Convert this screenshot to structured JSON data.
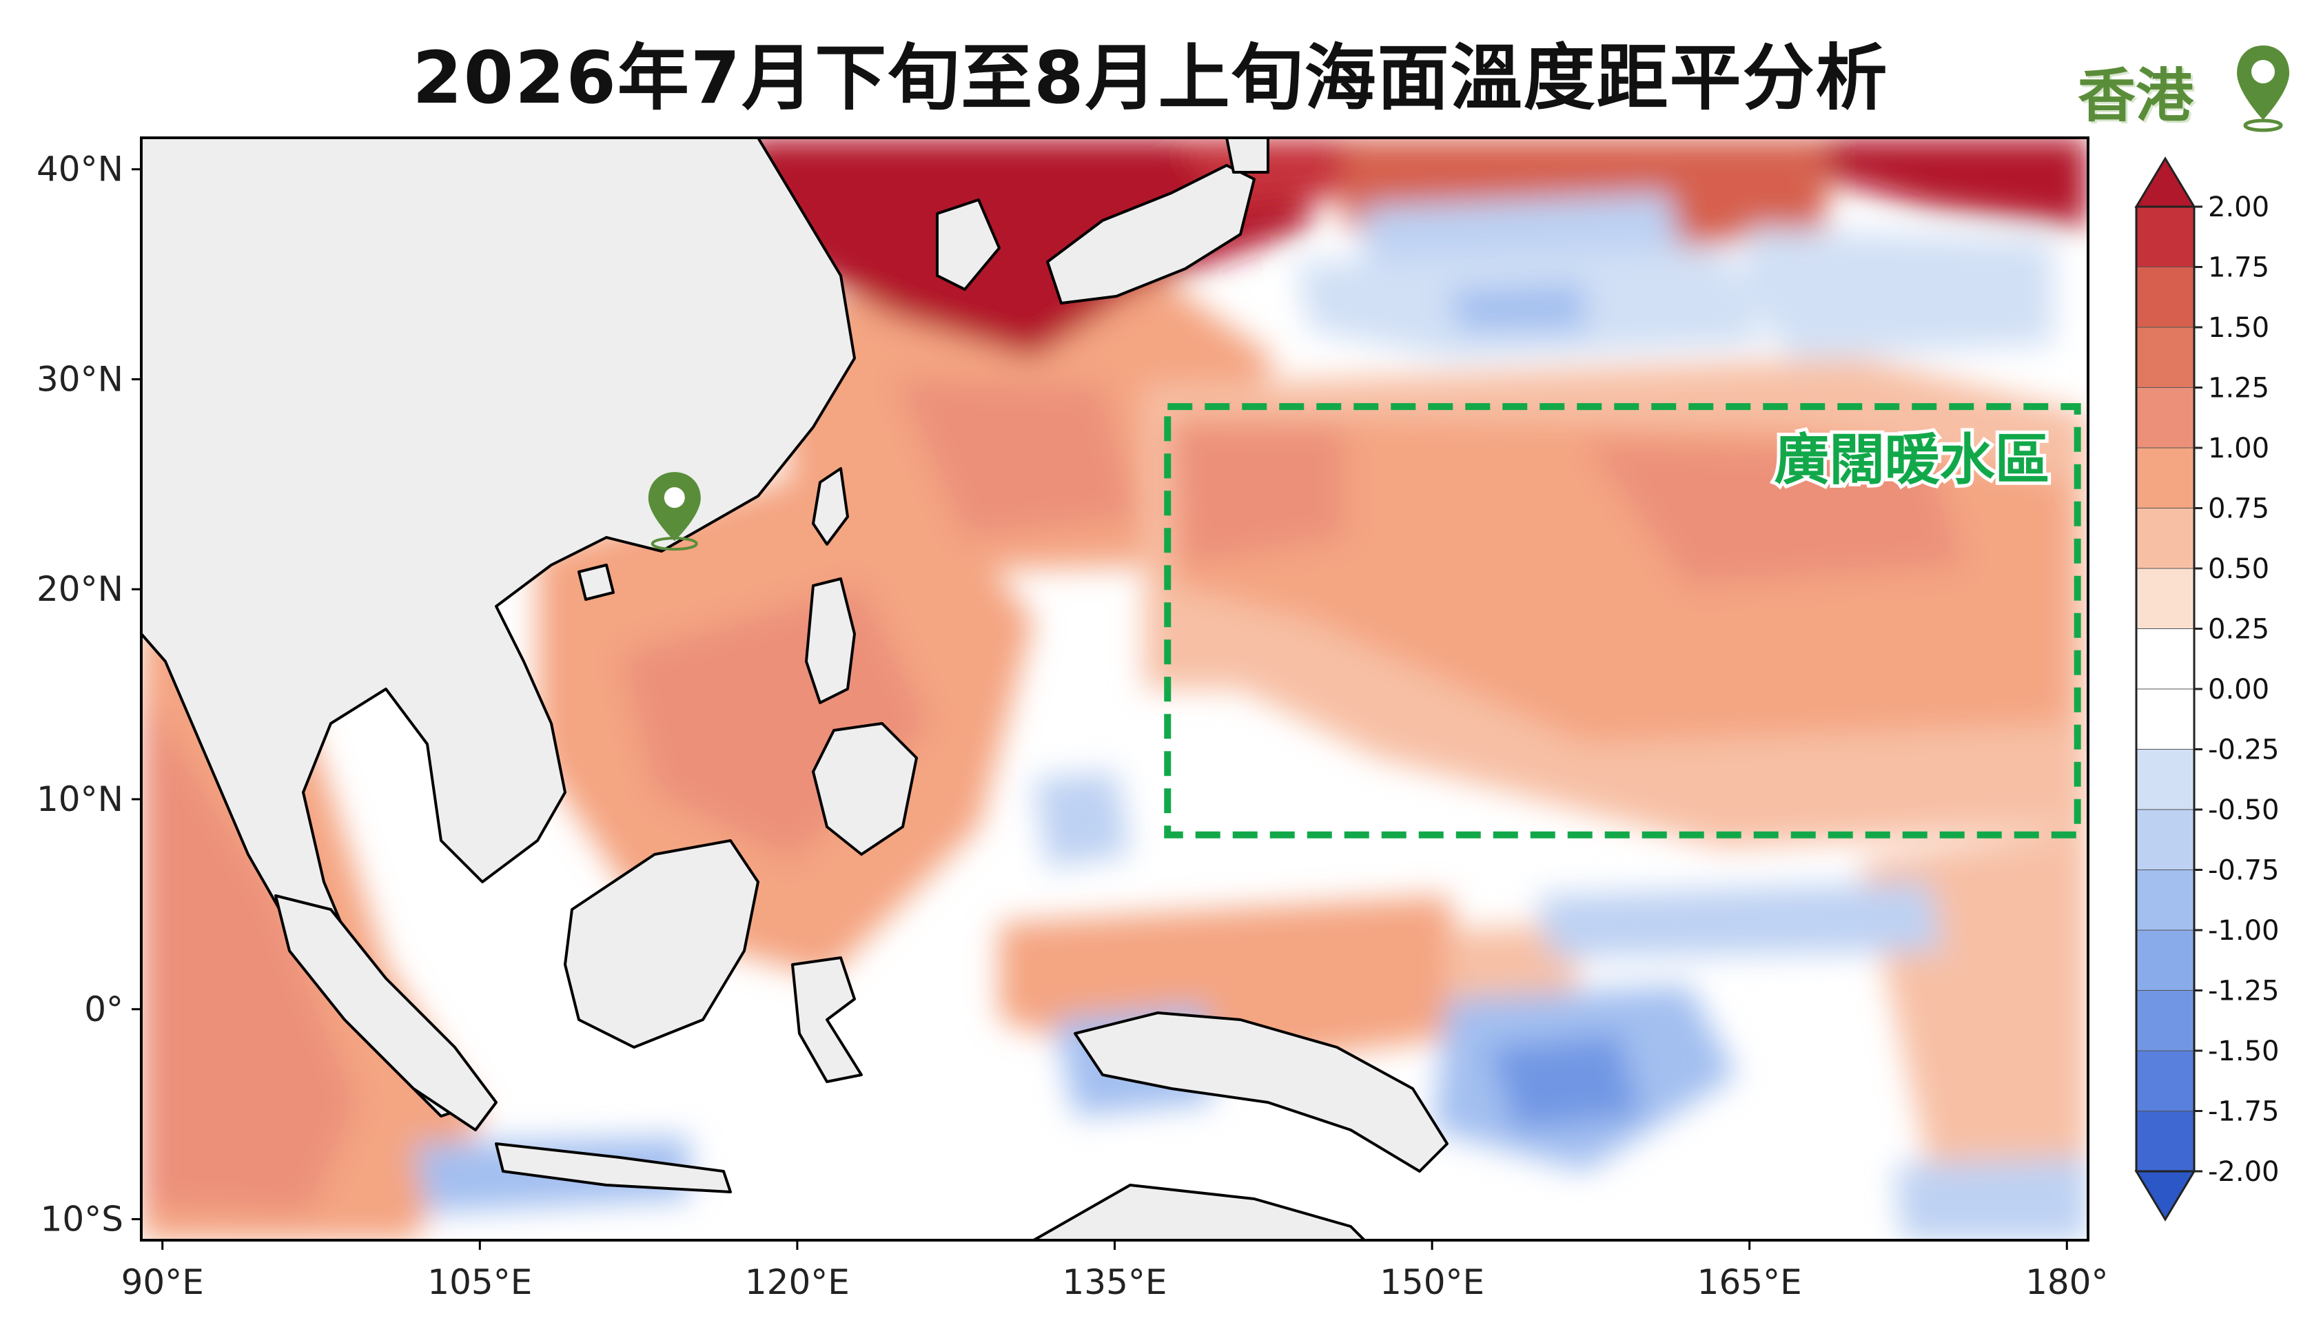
{
  "title": "2026年7月下旬至8月上旬海面溫度距平分析",
  "brand": {
    "text": "香港",
    "icon": "location-pin-icon",
    "color": "#5a8d3a"
  },
  "map": {
    "lon_range": [
      89,
      181
    ],
    "lat_range": [
      -11,
      41.5
    ],
    "lon_ticks": [
      "90°E",
      "105°E",
      "120°E",
      "135°E",
      "150°E",
      "165°E",
      "180°"
    ],
    "lat_ticks": [
      "40°N",
      "30°N",
      "20°N",
      "10°N",
      "0°",
      "10°S"
    ],
    "hong_kong_marker": {
      "icon": "location-pin-icon",
      "lon": 114.2,
      "lat": 22.3,
      "color": "#5a8d3a"
    },
    "highlight_box": {
      "label": "廣闊暖水區",
      "lon_range": [
        137.5,
        180.5
      ],
      "lat_range": [
        8.3,
        28.7
      ],
      "color": "#12a84a",
      "style": "dashed"
    },
    "land_color": "#eeeeee"
  },
  "colorbar": {
    "ticks": [
      "2.00",
      "1.75",
      "1.50",
      "1.25",
      "1.00",
      "0.75",
      "0.50",
      "0.25",
      "0.00",
      "-0.25",
      "-0.50",
      "-0.75",
      "-1.00",
      "-1.25",
      "-1.50",
      "-1.75",
      "-2.00"
    ],
    "colors_top_to_bottom": [
      "#b2182b",
      "#c6323a",
      "#d6604d",
      "#e17860",
      "#ec907a",
      "#f4a582",
      "#f7c0a5",
      "#fbe0d0",
      "#ffffff",
      "#ffffff",
      "#d1e0f5",
      "#bdd1f3",
      "#a3bff0",
      "#8aabea",
      "#7197e4",
      "#5880dc",
      "#3f68d2",
      "#2c57c6"
    ],
    "extend": "both"
  }
}
